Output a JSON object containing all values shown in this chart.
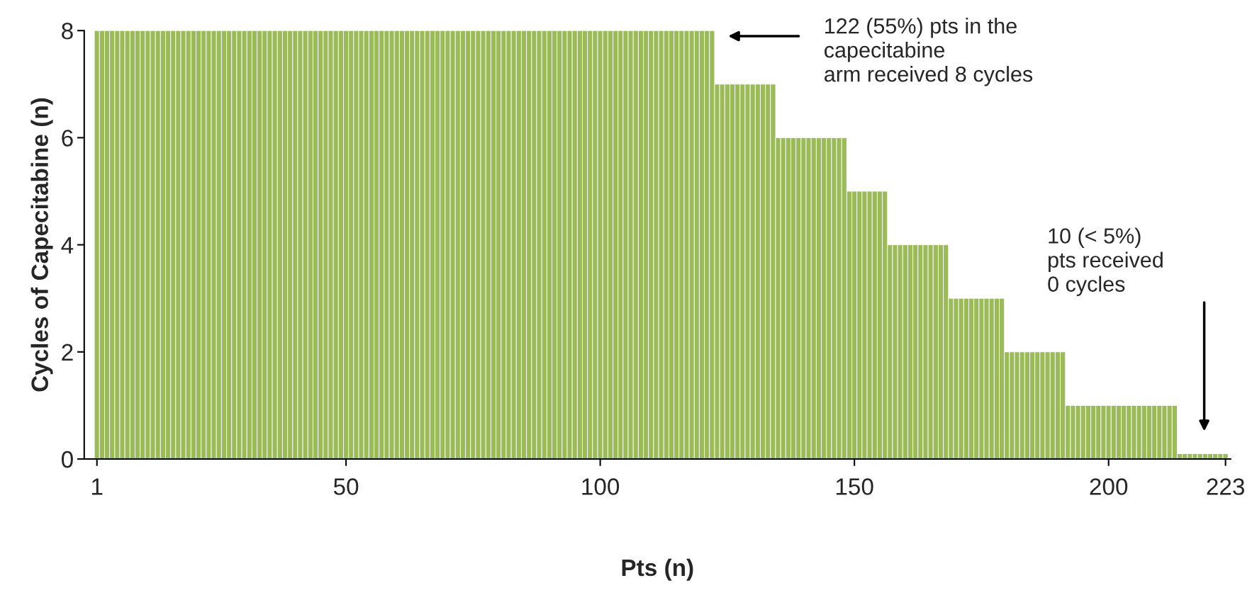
{
  "chart_data": {
    "type": "bar",
    "xlabel": "Pts (n)",
    "ylabel": "Cycles of Capecitabine (n)",
    "x": [
      1,
      2,
      3,
      4,
      5,
      6,
      7,
      8,
      9,
      10,
      11,
      12,
      13,
      14,
      15,
      16,
      17,
      18,
      19,
      20,
      21,
      22,
      23,
      24,
      25,
      26,
      27,
      28,
      29,
      30,
      31,
      32,
      33,
      34,
      35,
      36,
      37,
      38,
      39,
      40,
      41,
      42,
      43,
      44,
      45,
      46,
      47,
      48,
      49,
      50,
      51,
      52,
      53,
      54,
      55,
      56,
      57,
      58,
      59,
      60,
      61,
      62,
      63,
      64,
      65,
      66,
      67,
      68,
      69,
      70,
      71,
      72,
      73,
      74,
      75,
      76,
      77,
      78,
      79,
      80,
      81,
      82,
      83,
      84,
      85,
      86,
      87,
      88,
      89,
      90,
      91,
      92,
      93,
      94,
      95,
      96,
      97,
      98,
      99,
      100,
      101,
      102,
      103,
      104,
      105,
      106,
      107,
      108,
      109,
      110,
      111,
      112,
      113,
      114,
      115,
      116,
      117,
      118,
      119,
      120,
      121,
      122,
      123,
      124,
      125,
      126,
      127,
      128,
      129,
      130,
      131,
      132,
      133,
      134,
      135,
      136,
      137,
      138,
      139,
      140,
      141,
      142,
      143,
      144,
      145,
      146,
      147,
      148,
      149,
      150,
      151,
      152,
      153,
      154,
      155,
      156,
      157,
      158,
      159,
      160,
      161,
      162,
      163,
      164,
      165,
      166,
      167,
      168,
      169,
      170,
      171,
      172,
      173,
      174,
      175,
      176,
      177,
      178,
      179,
      180,
      181,
      182,
      183,
      184,
      185,
      186,
      187,
      188,
      189,
      190,
      191,
      192,
      193,
      194,
      195,
      196,
      197,
      198,
      199,
      200,
      201,
      202,
      203,
      204,
      205,
      206,
      207,
      208,
      209,
      210,
      211,
      212,
      213,
      214,
      215,
      216,
      217,
      218,
      219,
      220,
      221,
      222,
      223
    ],
    "values": [
      8,
      8,
      8,
      8,
      8,
      8,
      8,
      8,
      8,
      8,
      8,
      8,
      8,
      8,
      8,
      8,
      8,
      8,
      8,
      8,
      8,
      8,
      8,
      8,
      8,
      8,
      8,
      8,
      8,
      8,
      8,
      8,
      8,
      8,
      8,
      8,
      8,
      8,
      8,
      8,
      8,
      8,
      8,
      8,
      8,
      8,
      8,
      8,
      8,
      8,
      8,
      8,
      8,
      8,
      8,
      8,
      8,
      8,
      8,
      8,
      8,
      8,
      8,
      8,
      8,
      8,
      8,
      8,
      8,
      8,
      8,
      8,
      8,
      8,
      8,
      8,
      8,
      8,
      8,
      8,
      8,
      8,
      8,
      8,
      8,
      8,
      8,
      8,
      8,
      8,
      8,
      8,
      8,
      8,
      8,
      8,
      8,
      8,
      8,
      8,
      8,
      8,
      8,
      8,
      8,
      8,
      8,
      8,
      8,
      8,
      8,
      8,
      8,
      8,
      8,
      8,
      8,
      8,
      8,
      8,
      8,
      8,
      7,
      7,
      7,
      7,
      7,
      7,
      7,
      7,
      7,
      7,
      7,
      7,
      6,
      6,
      6,
      6,
      6,
      6,
      6,
      6,
      6,
      6,
      6,
      6,
      6,
      6,
      5,
      5,
      5,
      5,
      5,
      5,
      5,
      5,
      4,
      4,
      4,
      4,
      4,
      4,
      4,
      4,
      4,
      4,
      4,
      4,
      3,
      3,
      3,
      3,
      3,
      3,
      3,
      3,
      3,
      3,
      3,
      2,
      2,
      2,
      2,
      2,
      2,
      2,
      2,
      2,
      2,
      2,
      2,
      1,
      1,
      1,
      1,
      1,
      1,
      1,
      1,
      1,
      1,
      1,
      1,
      1,
      1,
      1,
      1,
      1,
      1,
      1,
      1,
      1,
      1,
      0.1,
      0.1,
      0.1,
      0.1,
      0.1,
      0.1,
      0.1,
      0.1,
      0.1,
      0.1
    ],
    "color": "#9bbb59",
    "xlim": [
      -1.5,
      224
    ],
    "xticks": [
      1,
      50,
      100,
      150,
      200,
      223
    ],
    "ylim": [
      0,
      8
    ],
    "yticks": [
      0,
      2,
      4,
      6,
      8
    ],
    "grid": false,
    "legend": false,
    "annotations": [
      "122 (55%) pts in the\ncapecitabine\narm received 8 cycles",
      "10 (< 5%)\npts received\n0 cycles"
    ]
  }
}
